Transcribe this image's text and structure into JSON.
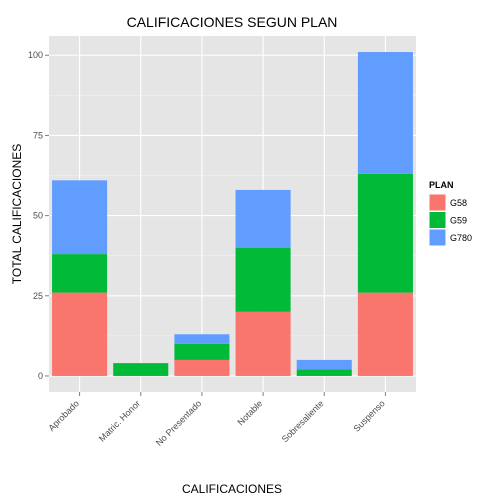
{
  "chart_data": {
    "type": "bar",
    "stacked": true,
    "title": "CALIFICACIONES SEGUN PLAN",
    "xlabel": "CALIFICACIONES",
    "ylabel": "TOTAL CALIFICACIONES",
    "categories": [
      "Aprobado",
      "Matric. Honor",
      "No Presentado",
      "Notable",
      "Sobresaliente",
      "Suspenso"
    ],
    "series": [
      {
        "name": "G58",
        "color": "#F8766D",
        "values": [
          26,
          0,
          5,
          20,
          0,
          26
        ]
      },
      {
        "name": "G59",
        "color": "#00BA38",
        "values": [
          12,
          4,
          5,
          20,
          2,
          37
        ]
      },
      {
        "name": "G780",
        "color": "#619CFF",
        "values": [
          23,
          0,
          3,
          18,
          3,
          38
        ]
      }
    ],
    "ylim": [
      -5,
      106
    ],
    "yticks": [
      0,
      25,
      50,
      75,
      100
    ],
    "grid": true,
    "legend": {
      "title": "PLAN",
      "position": "right"
    }
  }
}
